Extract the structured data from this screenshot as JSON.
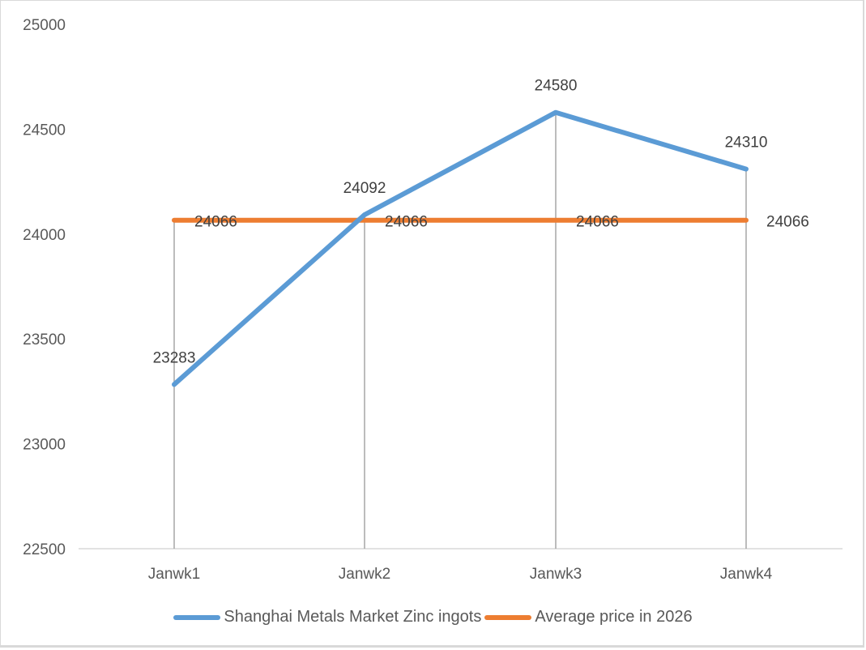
{
  "chart_data": {
    "type": "line",
    "title": "",
    "xlabel": "",
    "ylabel": "",
    "categories": [
      "Janwk1",
      "Janwk2",
      "Janwk3",
      "Janwk4"
    ],
    "series": [
      {
        "name": "Shanghai Metals Market Zinc ingots",
        "color": "#5b9bd5",
        "values": [
          23283,
          24092,
          24580,
          24310
        ]
      },
      {
        "name": "Average price in 2026",
        "color": "#ed7d31",
        "values": [
          24066,
          24066,
          24066,
          24066
        ]
      }
    ],
    "ylim": [
      22500,
      25000
    ],
    "yticks": [
      22500,
      23000,
      23500,
      24000,
      24500,
      25000
    ],
    "grid": false,
    "drop_lines": true,
    "data_labels": true,
    "legend_position": "bottom"
  },
  "legend": {
    "items": [
      {
        "label": "Shanghai Metals Market Zinc ingots",
        "color": "#5b9bd5"
      },
      {
        "label": "Average price in 2026",
        "color": "#ed7d31"
      }
    ]
  }
}
